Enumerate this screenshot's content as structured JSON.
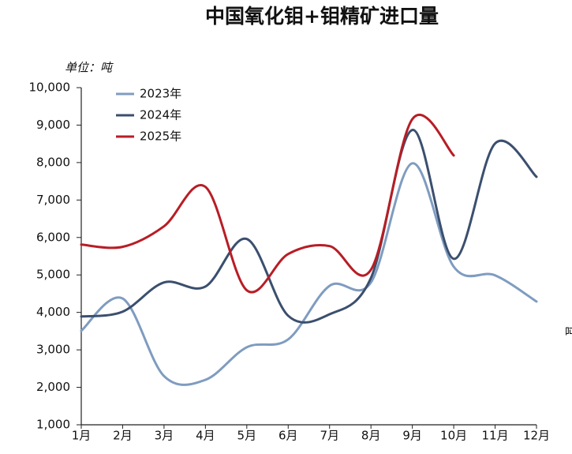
{
  "chart_data": {
    "type": "line",
    "title": "中国氧化钼+钼精矿进口量",
    "y_label": "单位：吨",
    "annotation": "吨",
    "categories": [
      "1月",
      "2月",
      "3月",
      "4月",
      "5月",
      "6月",
      "7月",
      "8月",
      "9月",
      "10月",
      "11月",
      "12月"
    ],
    "series": [
      {
        "name": "2023年",
        "color": "#7f9cc0",
        "values": [
          3510,
          4370,
          2300,
          2200,
          3070,
          3280,
          4710,
          4800,
          7980,
          5220,
          4990,
          4290
        ]
      },
      {
        "name": "2024年",
        "color": "#3b4f6e",
        "values": [
          3890,
          4020,
          4800,
          4690,
          5960,
          3910,
          3950,
          4920,
          8870,
          5430,
          8510,
          7620
        ]
      },
      {
        "name": "2025年",
        "color": "#b81d25",
        "values": [
          5810,
          5750,
          6300,
          7350,
          4590,
          5560,
          5770,
          5140,
          9160,
          8190,
          null,
          null
        ]
      }
    ],
    "ylim": [
      1000,
      10000
    ],
    "yticks": [
      {
        "value": 1000,
        "label": "1,000"
      },
      {
        "value": 2000,
        "label": "2,000"
      },
      {
        "value": 3000,
        "label": "3,000"
      },
      {
        "value": 4000,
        "label": "4,000"
      },
      {
        "value": 5000,
        "label": "5,000"
      },
      {
        "value": 6000,
        "label": "6,000"
      },
      {
        "value": 7000,
        "label": "7,000"
      },
      {
        "value": 8000,
        "label": "8,000"
      },
      {
        "value": 9000,
        "label": "9,000"
      },
      {
        "value": 10000,
        "label": "10,000"
      }
    ],
    "grid": false,
    "legend": "upper left"
  }
}
